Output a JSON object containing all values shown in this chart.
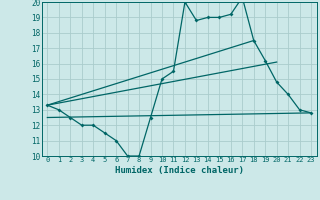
{
  "xlabel": "Humidex (Indice chaleur)",
  "bg_color": "#cce8e8",
  "grid_color": "#aacccc",
  "line_color": "#006666",
  "xlim": [
    -0.5,
    23.5
  ],
  "ylim": [
    10,
    20
  ],
  "xticks": [
    0,
    1,
    2,
    3,
    4,
    5,
    6,
    7,
    8,
    9,
    10,
    11,
    12,
    13,
    14,
    15,
    16,
    17,
    18,
    19,
    20,
    21,
    22,
    23
  ],
  "yticks": [
    10,
    11,
    12,
    13,
    14,
    15,
    16,
    17,
    18,
    19,
    20
  ],
  "series1_x": [
    0,
    1,
    2,
    3,
    4,
    5,
    6,
    7,
    8,
    9,
    10,
    11,
    12,
    13,
    14,
    15,
    16,
    17,
    18,
    19,
    20,
    21,
    22,
    23
  ],
  "series1_y": [
    13.3,
    13.0,
    12.5,
    12.0,
    12.0,
    11.5,
    11.0,
    10.0,
    10.0,
    12.5,
    15.0,
    15.5,
    20.0,
    18.8,
    19.0,
    19.0,
    19.2,
    20.3,
    17.5,
    16.2,
    14.8,
    14.0,
    13.0,
    12.8
  ],
  "series2_x": [
    0,
    18
  ],
  "series2_y": [
    13.3,
    17.5
  ],
  "series3_x": [
    0,
    20
  ],
  "series3_y": [
    13.3,
    16.1
  ],
  "series4_x": [
    0,
    23
  ],
  "series4_y": [
    12.5,
    12.8
  ]
}
